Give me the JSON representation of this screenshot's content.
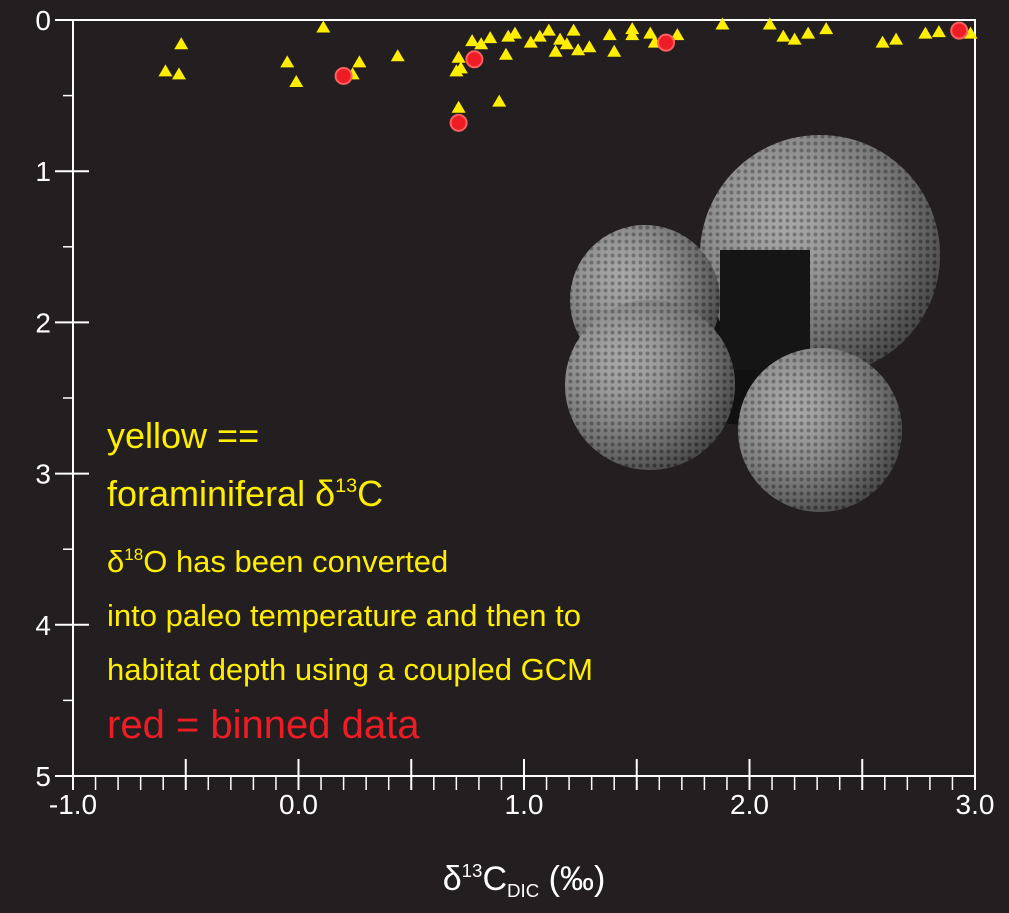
{
  "chart_data": {
    "type": "scatter",
    "background": "#231f20",
    "axis_color": "#ffffff",
    "xlim": [
      -1.0,
      3.0
    ],
    "ylim": [
      0,
      5
    ],
    "y_inverted": true,
    "xticks": [
      {
        "value": -1.0,
        "label": "-1.0"
      },
      {
        "value": 0.0,
        "label": "0.0"
      },
      {
        "value": 1.0,
        "label": "1.0"
      },
      {
        "value": 2.0,
        "label": "2.0"
      },
      {
        "value": 3.0,
        "label": "3.0"
      }
    ],
    "xmidticks": [
      -0.5,
      0.5,
      1.5,
      2.5
    ],
    "xminorticks": [
      -0.9,
      -0.8,
      -0.7,
      -0.6,
      -0.4,
      -0.3,
      -0.2,
      -0.1,
      0.1,
      0.2,
      0.3,
      0.4,
      0.6,
      0.7,
      0.8,
      0.9,
      1.1,
      1.2,
      1.3,
      1.4,
      1.6,
      1.7,
      1.8,
      1.9,
      2.1,
      2.2,
      2.3,
      2.4,
      2.6,
      2.7,
      2.8,
      2.9
    ],
    "yticks": [
      0,
      1,
      2,
      3,
      4,
      5
    ],
    "yminorticks": [
      0.5,
      1.5,
      2.5,
      3.5,
      4.5
    ],
    "x_label": {
      "parts": [
        {
          "text": "δ"
        },
        {
          "text": "13",
          "script": "super"
        },
        {
          "text": "C"
        },
        {
          "text": "DIC",
          "script": "sub"
        },
        {
          "text": " (‰)"
        }
      ]
    },
    "series": [
      {
        "color": "#ffee00",
        "marker": "triangle",
        "x": [
          -0.59,
          -0.52,
          -0.53,
          -0.05,
          -0.01,
          0.11,
          0.27,
          0.24,
          0.44,
          0.7,
          0.71,
          0.72,
          0.71,
          0.77,
          0.81,
          0.85,
          0.89,
          0.92,
          0.93,
          0.96,
          1.03,
          1.07,
          1.11,
          1.14,
          1.16,
          1.19,
          1.22,
          1.24,
          1.29,
          1.38,
          1.4,
          1.48,
          1.48,
          1.56,
          1.58,
          1.68,
          1.88,
          2.09,
          2.15,
          2.2,
          2.26,
          2.34,
          2.59,
          2.65,
          2.78,
          2.84,
          2.98
        ],
        "values": [
          0.34,
          0.16,
          0.36,
          0.28,
          0.41,
          0.05,
          0.28,
          0.36,
          0.24,
          0.34,
          0.25,
          0.32,
          0.58,
          0.14,
          0.16,
          0.12,
          0.54,
          0.23,
          0.11,
          0.09,
          0.15,
          0.11,
          0.07,
          0.21,
          0.13,
          0.16,
          0.07,
          0.2,
          0.18,
          0.1,
          0.21,
          0.1,
          0.06,
          0.09,
          0.15,
          0.1,
          0.03,
          0.03,
          0.11,
          0.13,
          0.09,
          0.06,
          0.15,
          0.13,
          0.09,
          0.08,
          0.09
        ]
      },
      {
        "color": "#ee1c25",
        "marker": "circle",
        "x": [
          0.2,
          0.78,
          0.71,
          1.63,
          2.93
        ],
        "values": [
          0.37,
          0.26,
          0.68,
          0.15,
          0.07
        ]
      }
    ],
    "annotations": [
      {
        "color": "#ffee00",
        "size": 36,
        "parts": [
          {
            "text": "yellow =="
          }
        ]
      },
      {
        "color": "#ffee00",
        "size": 36,
        "parts": [
          {
            "text": "foraminiferal δ"
          },
          {
            "text": "13",
            "script": "super"
          },
          {
            "text": "C"
          }
        ]
      },
      {
        "color": "#ffee00",
        "size": 31,
        "parts": [
          {
            "text": "δ"
          },
          {
            "text": "18",
            "script": "super"
          },
          {
            "text": "O has been converted"
          }
        ]
      },
      {
        "color": "#ffee00",
        "size": 31,
        "parts": [
          {
            "text": "into paleo temperature and then to"
          }
        ]
      },
      {
        "color": "#ffee00",
        "size": 31,
        "parts": [
          {
            "text": "habitat depth using a coupled GCM"
          }
        ]
      },
      {
        "color": "#ee1c25",
        "size": 40,
        "parts": [
          {
            "text": "red = binned data"
          }
        ]
      }
    ]
  }
}
